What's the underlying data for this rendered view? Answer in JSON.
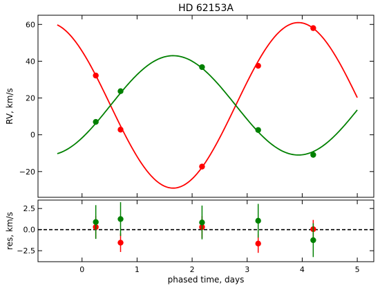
{
  "chart_data": [
    {
      "type": "scatter",
      "title": "HD 62153A",
      "ylabel": "RV, km/s",
      "xlim": [
        -0.8,
        5.3
      ],
      "ylim": [
        -34,
        65
      ],
      "xticks": [
        0,
        1,
        2,
        3,
        4,
        5
      ],
      "yticks": [
        -20,
        0,
        20,
        40,
        60
      ],
      "grid": false,
      "series": [
        {
          "color": "#ff0000",
          "points": [
            {
              "x": 0.25,
              "y": 32.2
            },
            {
              "x": 0.7,
              "y": 2.8
            },
            {
              "x": 2.18,
              "y": -17.3
            },
            {
              "x": 3.2,
              "y": 37.5
            },
            {
              "x": 4.2,
              "y": 58.0
            }
          ],
          "curve": {
            "x_start": -0.45,
            "x_end": 5.0,
            "k": 16.0,
            "amplitude": 45.0,
            "peak_x": 3.93
          }
        },
        {
          "color": "#008000",
          "points": [
            {
              "x": 0.25,
              "y": 7.0
            },
            {
              "x": 0.7,
              "y": 23.7
            },
            {
              "x": 2.18,
              "y": 36.8
            },
            {
              "x": 3.2,
              "y": 2.6
            },
            {
              "x": 4.2,
              "y": -10.9
            }
          ],
          "curve": {
            "x_start": -0.45,
            "x_end": 5.0,
            "k": 16.0,
            "amplitude": -27.0,
            "peak_x": 3.93
          }
        }
      ]
    },
    {
      "type": "scatter",
      "xlabel": "phased time, days",
      "ylabel": "res, km/s",
      "xlim": [
        -0.8,
        5.3
      ],
      "ylim": [
        -3.8,
        3.5
      ],
      "xticks": [
        0,
        1,
        2,
        3,
        4,
        5
      ],
      "yticks": [
        -2.5,
        0.0,
        2.5
      ],
      "ytick_labels": [
        "−2.5",
        "0.0",
        "2.5"
      ],
      "zero_line": {
        "y": 0,
        "style": "dashed",
        "color": "#000000"
      },
      "series": [
        {
          "color": "#ff0000",
          "points": [
            {
              "x": 0.25,
              "y": 0.3,
              "err": 1.3
            },
            {
              "x": 0.7,
              "y": -1.55,
              "err": 1.1
            },
            {
              "x": 2.18,
              "y": 0.3,
              "err": 1.3
            },
            {
              "x": 3.2,
              "y": -1.65,
              "err": 1.1
            },
            {
              "x": 4.2,
              "y": 0.05,
              "err": 1.1
            }
          ]
        },
        {
          "color": "#008000",
          "points": [
            {
              "x": 0.25,
              "y": 0.9,
              "err": 2.0
            },
            {
              "x": 0.7,
              "y": 1.25,
              "err": 2.0
            },
            {
              "x": 2.18,
              "y": 0.85,
              "err": 2.0
            },
            {
              "x": 3.2,
              "y": 1.05,
              "err": 2.0
            },
            {
              "x": 4.2,
              "y": -1.25,
              "err": 2.0
            }
          ]
        }
      ]
    }
  ]
}
